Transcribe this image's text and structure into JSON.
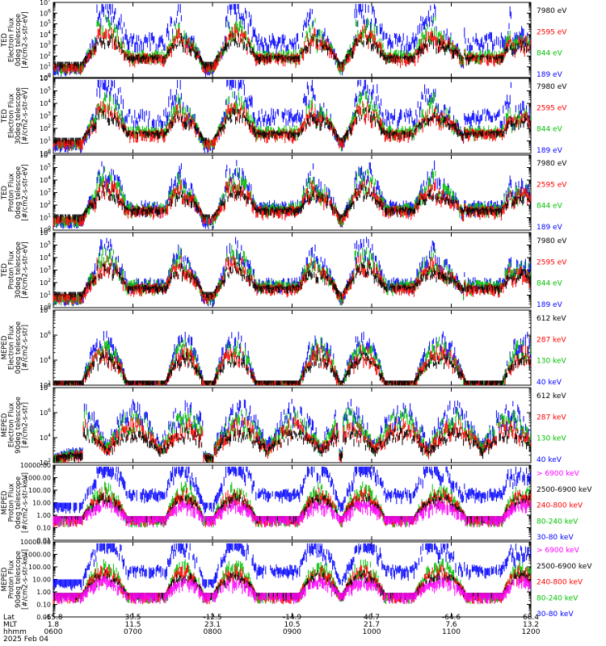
{
  "chart_data": {
    "type": "line",
    "panels": [
      {
        "ylabel": [
          "TED",
          "Electron Flux",
          "0deg telescope",
          "[#/cm2-s-str-eV]"
        ],
        "scale": "log",
        "yticks": [
          "10^0",
          "10^1",
          "10^2",
          "10^3",
          "10^4",
          "10^5",
          "10^6",
          "10^7"
        ],
        "series": [
          {
            "name": "7980 eV",
            "color": "#000000"
          },
          {
            "name": "2595 eV",
            "color": "#ff0000"
          },
          {
            "name": "844 eV",
            "color": "#00c000"
          },
          {
            "name": "189 eV",
            "color": "#0000ff"
          }
        ]
      },
      {
        "ylabel": [
          "TED",
          "Electron Flux",
          "30deg telescope",
          "[#/cm2-s-str-eV]"
        ],
        "scale": "log",
        "yticks": [
          "10^0",
          "10^1",
          "10^2",
          "10^3",
          "10^4",
          "10^5",
          "10^6"
        ],
        "series": [
          {
            "name": "7980 eV",
            "color": "#000000"
          },
          {
            "name": "2595 eV",
            "color": "#ff0000"
          },
          {
            "name": "844 eV",
            "color": "#00c000"
          },
          {
            "name": "189 eV",
            "color": "#0000ff"
          }
        ]
      },
      {
        "ylabel": [
          "TED",
          "Proton Flux",
          "0deg telescope",
          "[#/cm2-s-str-eV]"
        ],
        "scale": "log",
        "yticks": [
          "10^0",
          "10^1",
          "10^2",
          "10^3",
          "10^4",
          "10^5",
          "10^6"
        ],
        "series": [
          {
            "name": "7980 eV",
            "color": "#000000"
          },
          {
            "name": "2595 eV",
            "color": "#ff0000"
          },
          {
            "name": "844 eV",
            "color": "#00c000"
          },
          {
            "name": "189 eV",
            "color": "#0000ff"
          }
        ]
      },
      {
        "ylabel": [
          "TED",
          "Proton Flux",
          "30deg telescope",
          "[#/cm2-s-str-eV]"
        ],
        "scale": "log",
        "yticks": [
          "10^0",
          "10^1",
          "10^2",
          "10^3",
          "10^4",
          "10^5",
          "10^6"
        ],
        "series": [
          {
            "name": "7980 eV",
            "color": "#000000"
          },
          {
            "name": "2595 eV",
            "color": "#ff0000"
          },
          {
            "name": "844 eV",
            "color": "#00c000"
          },
          {
            "name": "189 eV",
            "color": "#0000ff"
          }
        ]
      },
      {
        "ylabel": [
          "MEPED",
          "Electron Flux",
          "0deg telescope",
          "[#/cm2-s-str]"
        ],
        "scale": "log",
        "yticks": [
          "10^2",
          "10^4",
          "10^6",
          "10^8"
        ],
        "series": [
          {
            "name": "612 keV",
            "color": "#000000"
          },
          {
            "name": "287 keV",
            "color": "#ff0000"
          },
          {
            "name": "130 keV",
            "color": "#00c000"
          },
          {
            "name": "40 keV",
            "color": "#0000ff"
          }
        ]
      },
      {
        "ylabel": [
          "MEPED",
          "Electron Flux",
          "90deg telescope",
          "[#/cm2-s-str]"
        ],
        "scale": "log",
        "yticks": [
          "10^2",
          "10^4",
          "10^6",
          "10^8"
        ],
        "series": [
          {
            "name": "612 keV",
            "color": "#000000"
          },
          {
            "name": "287 keV",
            "color": "#ff0000"
          },
          {
            "name": "130 keV",
            "color": "#00c000"
          },
          {
            "name": "40 keV",
            "color": "#0000ff"
          }
        ]
      },
      {
        "ylabel": [
          "MEPED",
          "Proton Flux",
          "0deg telescope",
          "[#/cm2-s-str-keV]"
        ],
        "scale": "log",
        "yticks": [
          "0.01",
          "0.10",
          "1.00",
          "10.00",
          "100.00",
          "1000.00",
          "10000.00"
        ],
        "series": [
          {
            "name": "> 6900 keV",
            "color": "#ff00ff"
          },
          {
            "name": "2500-6900 keV",
            "color": "#000000"
          },
          {
            "name": "240-800 keV",
            "color": "#ff0000"
          },
          {
            "name": "80-240 keV",
            "color": "#00c000"
          },
          {
            "name": "30-80 keV",
            "color": "#0000ff"
          }
        ]
      },
      {
        "ylabel": [
          "MEPED",
          "Proton Flux",
          "90deg telescope",
          "[#/cm2-s-str-keV]"
        ],
        "scale": "log",
        "yticks": [
          "0.01",
          "0.10",
          "1.00",
          "10.00",
          "100.00",
          "1000.00",
          "10000.00"
        ],
        "series": [
          {
            "name": "> 6900 keV",
            "color": "#ff00ff"
          },
          {
            "name": "2500-6900 keV",
            "color": "#000000"
          },
          {
            "name": "240-800 keV",
            "color": "#ff0000"
          },
          {
            "name": "80-240 keV",
            "color": "#00c000"
          },
          {
            "name": "30-80 keV",
            "color": "#0000ff"
          }
        ]
      }
    ],
    "x_axis": {
      "row_labels": [
        "Lat",
        "MLT",
        "hhmm",
        "2025 Feb 04"
      ],
      "ticks": [
        {
          "lat": "-65.8",
          "mlt": "1.8",
          "hhmm": "0600"
        },
        {
          "lat": "39.5",
          "mlt": "11.5",
          "hhmm": "0700"
        },
        {
          "lat": "-12.5",
          "mlt": "23.1",
          "hhmm": "0800"
        },
        {
          "lat": "-14.9",
          "mlt": "10.5",
          "hhmm": "0900"
        },
        {
          "lat": "40.7",
          "mlt": "21.7",
          "hhmm": "1000"
        },
        {
          "lat": "-64.6",
          "mlt": "7.6",
          "hhmm": "1100"
        },
        {
          "lat": "68.4",
          "mlt": "13.2",
          "hhmm": "1200"
        }
      ]
    }
  }
}
